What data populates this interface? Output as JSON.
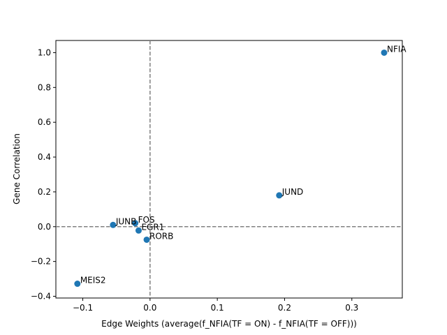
{
  "chart_data": {
    "type": "scatter",
    "title": "",
    "xlabel": "Edge Weights (average(f_NFIA(TF = ON) - f_NFIA(TF = OFF)))",
    "ylabel": "Gene Correlation",
    "xlim": [
      -0.14,
      0.375
    ],
    "ylim": [
      -0.41,
      1.07
    ],
    "xticks": [
      -0.1,
      0.0,
      0.1,
      0.2,
      0.3
    ],
    "xtick_labels": [
      "−0.1",
      "0.0",
      "0.1",
      "0.2",
      "0.3"
    ],
    "yticks": [
      -0.4,
      -0.2,
      0.0,
      0.2,
      0.4,
      0.6,
      0.8,
      1.0
    ],
    "ytick_labels": [
      "−0.4",
      "−0.2",
      "0.0",
      "0.2",
      "0.4",
      "0.6",
      "0.8",
      "1.0"
    ],
    "grid": false,
    "reference_lines": {
      "x": 0.0,
      "y": 0.0,
      "style": "dashed"
    },
    "point_color": "#1f77b4",
    "points": [
      {
        "label": "NFIA",
        "x": 0.348,
        "y": 1.0
      },
      {
        "label": "JUND",
        "x": 0.192,
        "y": 0.18
      },
      {
        "label": "JUNB",
        "x": -0.055,
        "y": 0.01
      },
      {
        "label": "FOS",
        "x": -0.022,
        "y": 0.02
      },
      {
        "label": "EGR1",
        "x": -0.017,
        "y": -0.022
      },
      {
        "label": "RORB",
        "x": -0.005,
        "y": -0.075
      },
      {
        "label": "MEIS2",
        "x": -0.108,
        "y": -0.328
      }
    ]
  }
}
